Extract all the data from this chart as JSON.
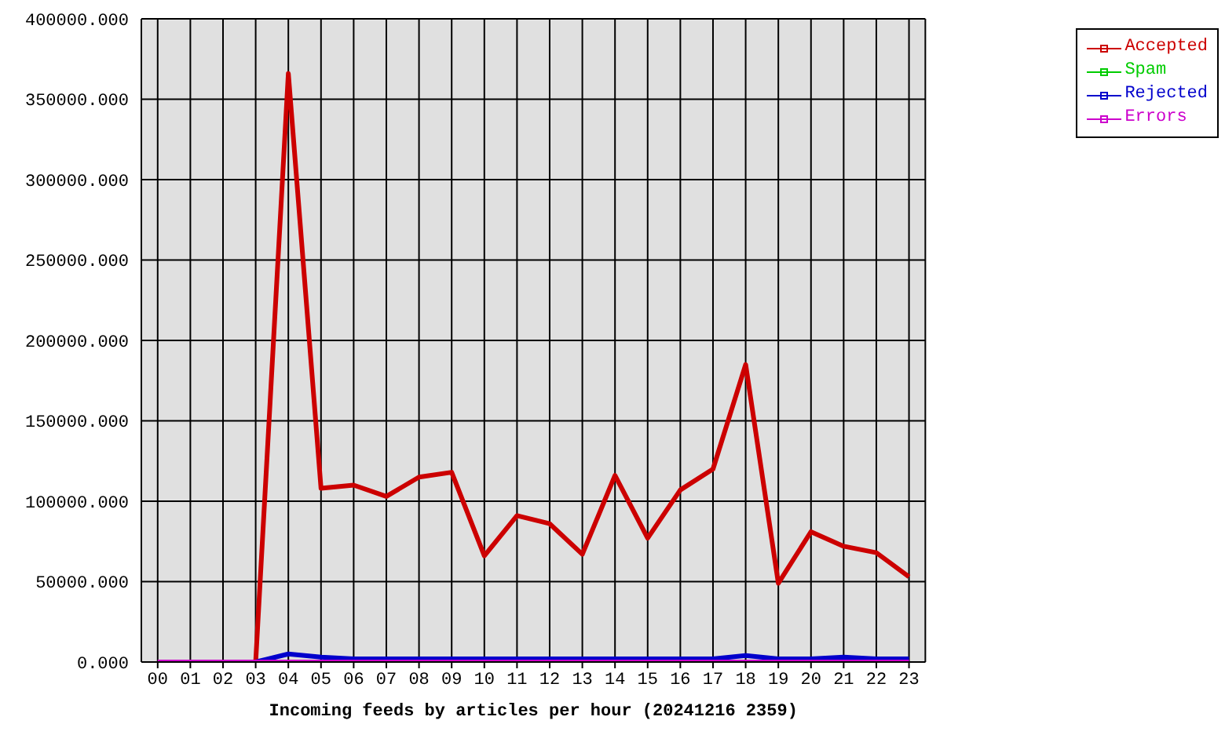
{
  "chart_data": {
    "type": "line",
    "xlabel": "Incoming feeds by articles per hour (20241216 2359)",
    "categories": [
      "00",
      "01",
      "02",
      "03",
      "04",
      "05",
      "06",
      "07",
      "08",
      "09",
      "10",
      "11",
      "12",
      "13",
      "14",
      "15",
      "16",
      "17",
      "18",
      "19",
      "20",
      "21",
      "22",
      "23"
    ],
    "series": [
      {
        "name": "Accepted",
        "color": "#cc0000",
        "values": [
          null,
          null,
          null,
          0,
          366000,
          108000,
          110000,
          103000,
          115000,
          118000,
          66000,
          91000,
          86000,
          67000,
          116000,
          77000,
          107000,
          120000,
          185000,
          49000,
          81000,
          72000,
          68000,
          53000
        ]
      },
      {
        "name": "Spam",
        "color": "#00cc00",
        "values": [
          null,
          null,
          null,
          null,
          null,
          null,
          null,
          null,
          null,
          null,
          null,
          null,
          null,
          null,
          null,
          null,
          null,
          null,
          null,
          null,
          null,
          null,
          null,
          null
        ]
      },
      {
        "name": "Rejected",
        "color": "#0000cc",
        "values": [
          null,
          null,
          null,
          0,
          5000,
          3000,
          2000,
          2000,
          2000,
          2000,
          2000,
          2000,
          2000,
          2000,
          2000,
          2000,
          2000,
          2000,
          4000,
          2000,
          2000,
          3000,
          2000,
          2000
        ]
      },
      {
        "name": "Errors",
        "color": "#cc00cc",
        "values": [
          0,
          0,
          0,
          0,
          0,
          0,
          0,
          0,
          0,
          0,
          0,
          0,
          0,
          0,
          0,
          0,
          0,
          0,
          0,
          0,
          0,
          0,
          0,
          0
        ]
      }
    ],
    "ylim": [
      0,
      400000
    ],
    "yticks": [
      {
        "value": 0,
        "label": "0.000"
      },
      {
        "value": 50000,
        "label": "50000.000"
      },
      {
        "value": 100000,
        "label": "100000.000"
      },
      {
        "value": 150000,
        "label": "150000.000"
      },
      {
        "value": 200000,
        "label": "200000.000"
      },
      {
        "value": 250000,
        "label": "250000.000"
      },
      {
        "value": 300000,
        "label": "300000.000"
      },
      {
        "value": 350000,
        "label": "350000.000"
      },
      {
        "value": 400000,
        "label": "400000.000"
      }
    ],
    "grid": true,
    "legend": "top right",
    "marker": "none",
    "line_style": "solid"
  }
}
